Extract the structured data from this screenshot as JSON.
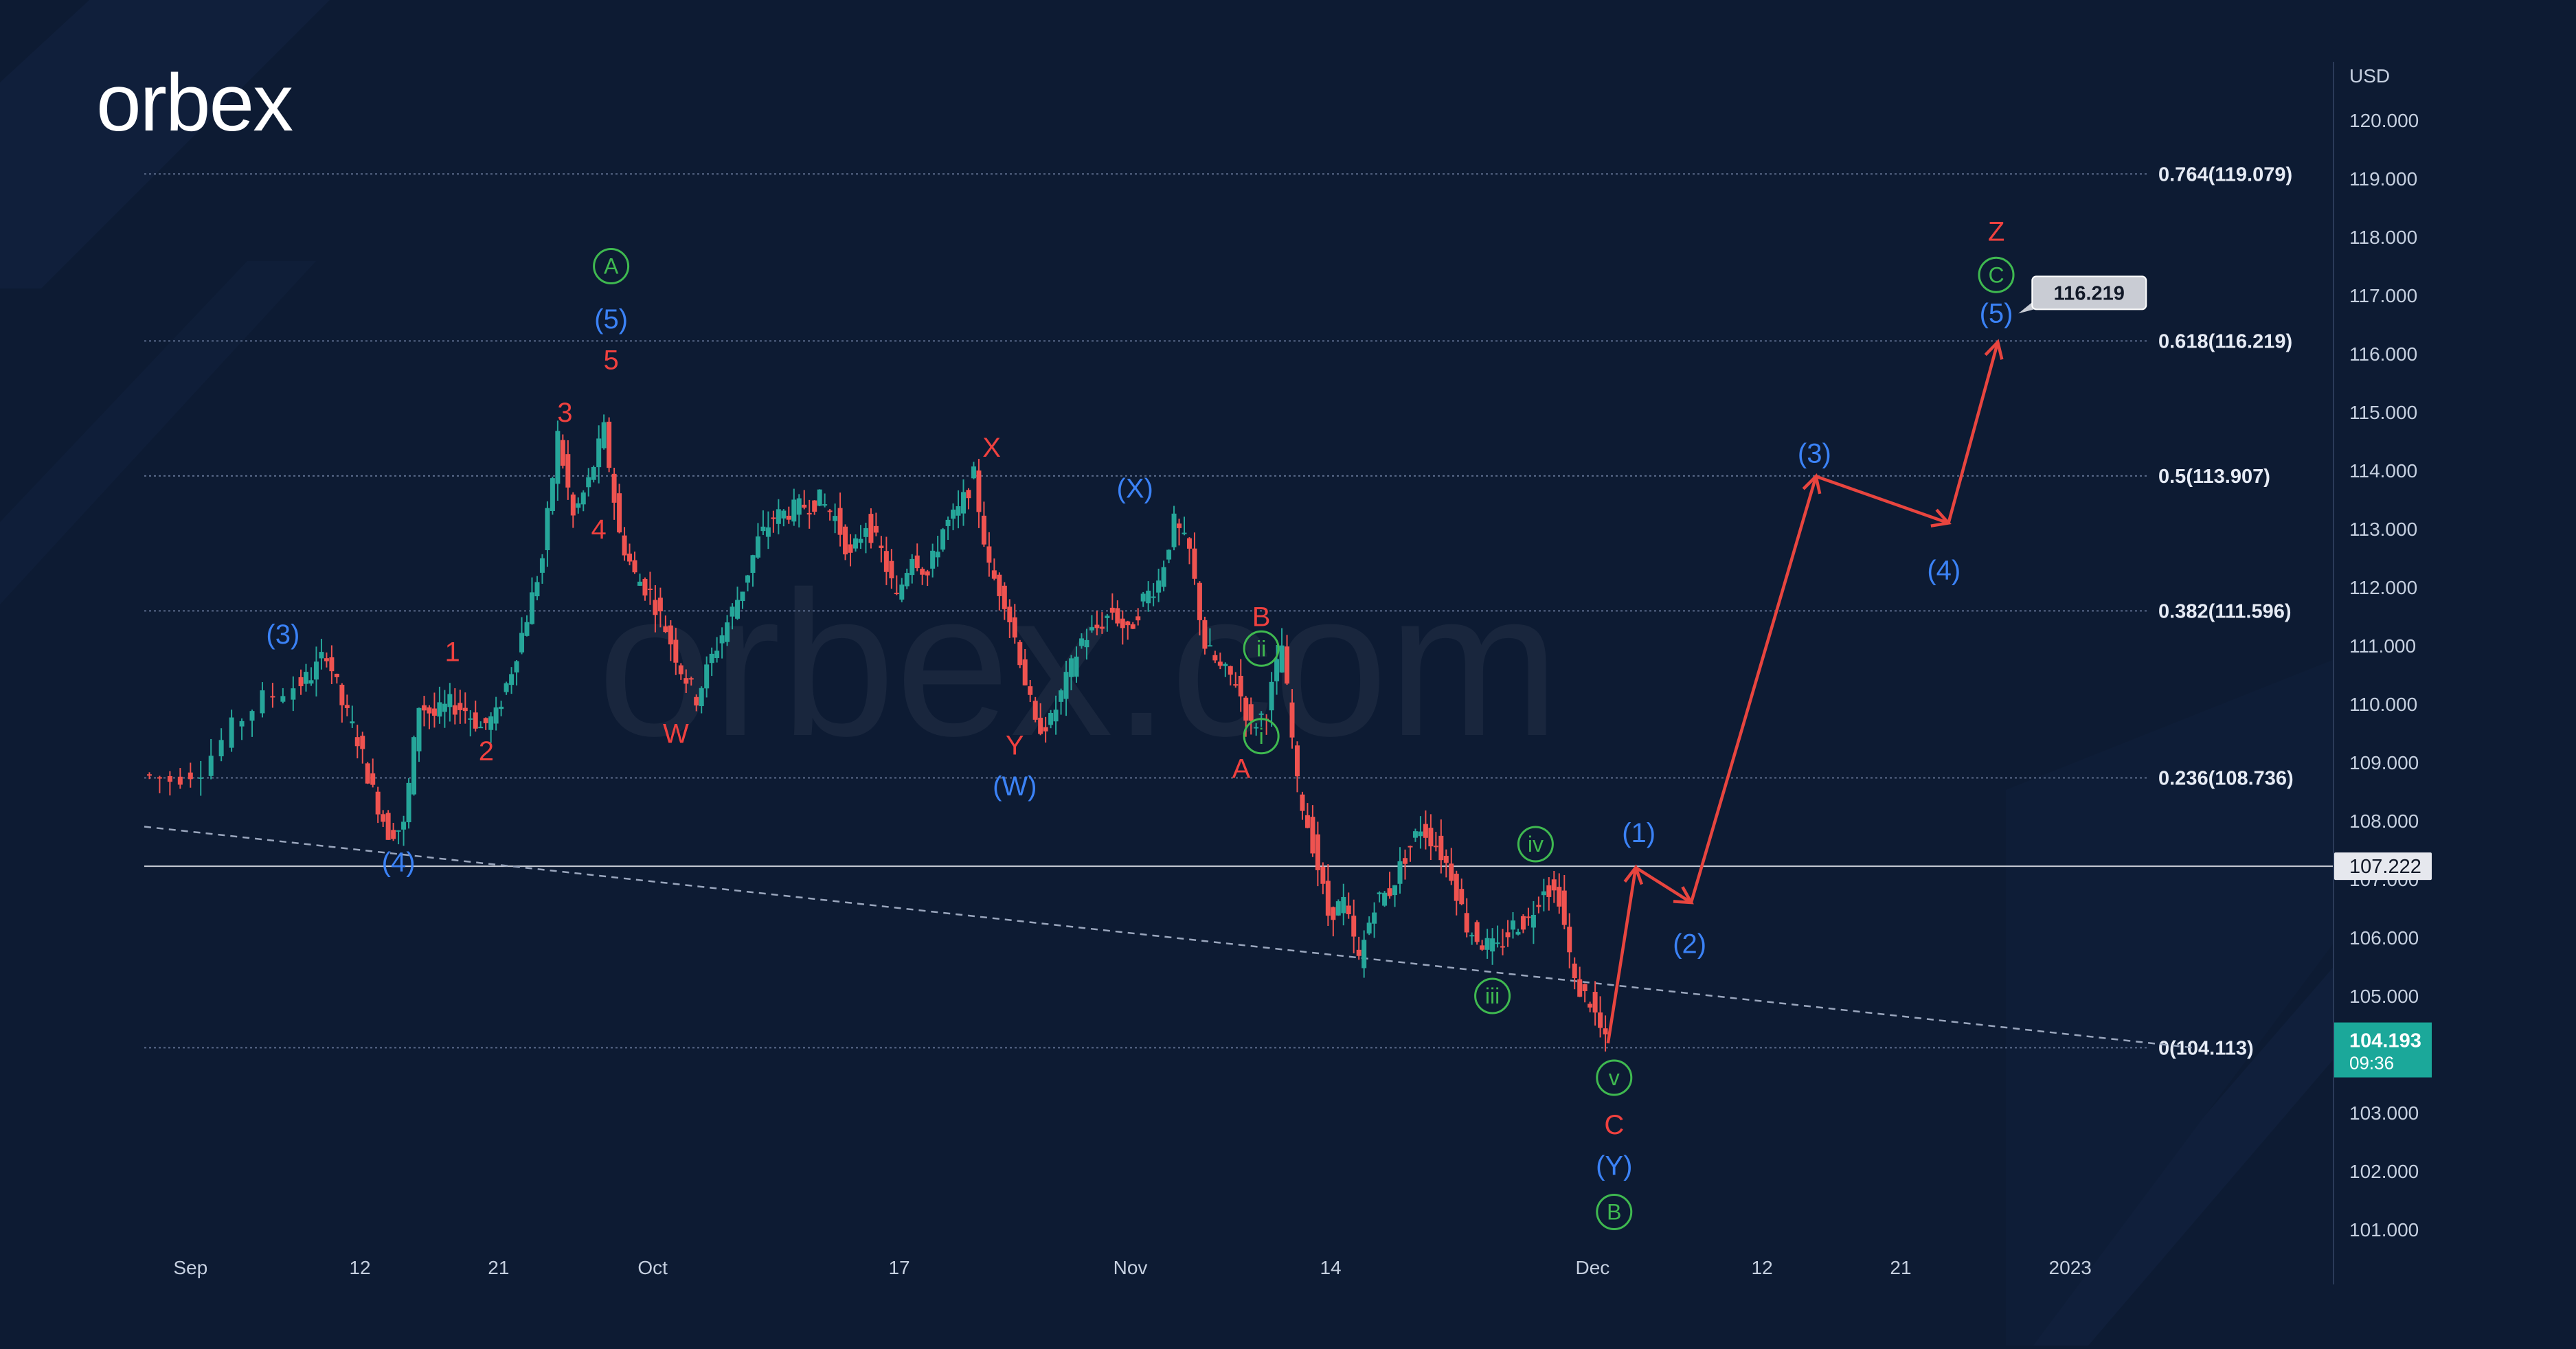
{
  "brand": {
    "logo_text": "orbex",
    "watermark_text": "orbex.com"
  },
  "colors": {
    "background": "#0d1b33",
    "up": "#26a69a",
    "down": "#ef5350",
    "red_label": "#f0413f",
    "blue_label": "#3b82f6",
    "green_label": "#3fb950",
    "fib_line": "#5a6a8a",
    "price_tag": "#1ba89a"
  },
  "chart_data": {
    "type": "line",
    "symbol_axis": "USD",
    "y_range": [
      100.0,
      121.0
    ],
    "y_ticks": [
      "101.000",
      "102.000",
      "103.000",
      "104.000",
      "105.000",
      "106.000",
      "107.000",
      "108.000",
      "109.000",
      "110.000",
      "111.000",
      "112.000",
      "113.000",
      "114.000",
      "115.000",
      "116.000",
      "117.000",
      "118.000",
      "119.000",
      "120.000"
    ],
    "y_tick_values": [
      101,
      102,
      103,
      104,
      105,
      106,
      107,
      108,
      109,
      110,
      111,
      112,
      113,
      114,
      115,
      116,
      117,
      118,
      119,
      120
    ],
    "x_ticks": [
      {
        "label": "Sep",
        "day": 0
      },
      {
        "label": "12",
        "day": 11
      },
      {
        "label": "21",
        "day": 20
      },
      {
        "label": "Oct",
        "day": 30
      },
      {
        "label": "17",
        "day": 46
      },
      {
        "label": "Nov",
        "day": 61
      },
      {
        "label": "14",
        "day": 74
      },
      {
        "label": "Dec",
        "day": 91
      },
      {
        "label": "12",
        "day": 102
      },
      {
        "label": "21",
        "day": 111
      },
      {
        "label": "2023",
        "day": 122
      }
    ],
    "x_range": [
      -3,
      139
    ],
    "price_path": [
      [
        -3,
        108.8
      ],
      [
        -1,
        108.7
      ],
      [
        1,
        108.9
      ],
      [
        3,
        109.6
      ],
      [
        5,
        110.1
      ],
      [
        7,
        110.3
      ],
      [
        8,
        110.5
      ],
      [
        9,
        110.9
      ],
      [
        10,
        110.0
      ],
      [
        11,
        109.4
      ],
      [
        12,
        108.5
      ],
      [
        13,
        107.8
      ],
      [
        14,
        107.9
      ],
      [
        15,
        110.0
      ],
      [
        16,
        109.8
      ],
      [
        17,
        110.0
      ],
      [
        18,
        109.9
      ],
      [
        19,
        109.6
      ],
      [
        20,
        109.8
      ],
      [
        21,
        110.6
      ],
      [
        22,
        111.5
      ],
      [
        23,
        112.5
      ],
      [
        24,
        114.6
      ],
      [
        25,
        113.2
      ],
      [
        26,
        113.8
      ],
      [
        27,
        114.7
      ],
      [
        28,
        112.9
      ],
      [
        29,
        112.2
      ],
      [
        30,
        111.9
      ],
      [
        31,
        111.3
      ],
      [
        32,
        110.6
      ],
      [
        33,
        110.1
      ],
      [
        34,
        110.8
      ],
      [
        35,
        111.4
      ],
      [
        36,
        112.0
      ],
      [
        37,
        112.8
      ],
      [
        38,
        113.2
      ],
      [
        39,
        113.3
      ],
      [
        40,
        113.4
      ],
      [
        41,
        113.5
      ],
      [
        42,
        113.2
      ],
      [
        43,
        112.5
      ],
      [
        44,
        113.1
      ],
      [
        45,
        112.6
      ],
      [
        46,
        111.8
      ],
      [
        47,
        112.6
      ],
      [
        48,
        112.2
      ],
      [
        49,
        113.0
      ],
      [
        50,
        113.3
      ],
      [
        51,
        113.9
      ],
      [
        52,
        112.3
      ],
      [
        53,
        111.8
      ],
      [
        54,
        110.8
      ],
      [
        55,
        109.6
      ],
      [
        56,
        109.7
      ],
      [
        57,
        110.4
      ],
      [
        58,
        111.1
      ],
      [
        59,
        111.3
      ],
      [
        60,
        111.6
      ],
      [
        61,
        111.2
      ],
      [
        62,
        111.8
      ],
      [
        63,
        112.1
      ],
      [
        64,
        113.1
      ],
      [
        65,
        112.6
      ],
      [
        66,
        111.0
      ],
      [
        67,
        110.6
      ],
      [
        68,
        110.4
      ],
      [
        69,
        109.6
      ],
      [
        70,
        109.9
      ],
      [
        71,
        111.0
      ],
      [
        72,
        108.6
      ],
      [
        73,
        107.6
      ],
      [
        74,
        106.4
      ],
      [
        75,
        106.6
      ],
      [
        76,
        105.6
      ],
      [
        77,
        106.6
      ],
      [
        78,
        106.8
      ],
      [
        79,
        107.4
      ],
      [
        80,
        107.9
      ],
      [
        81,
        107.6
      ],
      [
        82,
        107.1
      ],
      [
        83,
        106.2
      ],
      [
        84,
        105.9
      ],
      [
        85,
        105.8
      ],
      [
        86,
        106.2
      ],
      [
        87,
        106.3
      ],
      [
        88,
        106.9
      ],
      [
        89,
        106.7
      ],
      [
        90,
        105.2
      ],
      [
        91,
        104.9
      ],
      [
        92,
        104.19
      ]
    ],
    "forecast_path": [
      [
        92,
        104.19
      ],
      [
        93.8,
        107.2
      ],
      [
        97.4,
        106.6
      ],
      [
        105.5,
        113.9
      ],
      [
        114.1,
        113.1
      ],
      [
        117.3,
        116.2
      ]
    ],
    "trendline": [
      [
        -3,
        107.9
      ],
      [
        130,
        104.113
      ]
    ],
    "fib_levels": [
      {
        "label": "0.764(119.079)",
        "value": 119.079
      },
      {
        "label": "0.618(116.219)",
        "value": 116.219
      },
      {
        "label": "0.5(113.907)",
        "value": 113.907
      },
      {
        "label": "0.382(111.596)",
        "value": 111.596
      },
      {
        "label": "0.236(108.736)",
        "value": 108.736
      },
      {
        "label": "0(104.113)",
        "value": 104.113
      }
    ],
    "horizontal_line": {
      "value": 107.222,
      "tag": "107.222"
    },
    "forecast_target_tag": "116.219",
    "current_price": {
      "price": "104.193",
      "countdown": "09:36",
      "value": 104.193
    },
    "wave_labels": [
      {
        "text": "(3)",
        "color": "blue",
        "day": 6,
        "price": 111.2
      },
      {
        "text": "(4)",
        "color": "blue",
        "day": 13.5,
        "price": 107.3
      },
      {
        "text": "1",
        "color": "red",
        "day": 17,
        "price": 110.9
      },
      {
        "text": "2",
        "color": "red",
        "day": 19.2,
        "price": 109.2
      },
      {
        "text": "3",
        "color": "red",
        "day": 24.3,
        "price": 115.0
      },
      {
        "text": "4",
        "color": "red",
        "day": 26.5,
        "price": 113.0
      },
      {
        "text": "5",
        "color": "red",
        "day": 27.3,
        "price": 115.9
      },
      {
        "text": "(5)",
        "color": "blue",
        "day": 27.3,
        "price": 116.6
      },
      {
        "text": "A",
        "color": "green",
        "circled": true,
        "day": 27.3,
        "price": 117.5
      },
      {
        "text": "W",
        "color": "red",
        "day": 31.5,
        "price": 109.5
      },
      {
        "text": "X",
        "color": "red",
        "day": 52,
        "price": 114.4
      },
      {
        "text": "Y",
        "color": "red",
        "day": 53.5,
        "price": 109.3
      },
      {
        "text": "(W)",
        "color": "blue",
        "day": 53.5,
        "price": 108.6
      },
      {
        "text": "(X)",
        "color": "blue",
        "day": 61.3,
        "price": 113.7
      },
      {
        "text": "B",
        "color": "red",
        "day": 69.5,
        "price": 111.5
      },
      {
        "text": "ii",
        "color": "green",
        "circled": true,
        "day": 69.5,
        "price": 110.95
      },
      {
        "text": "i",
        "color": "green",
        "circled": true,
        "day": 69.5,
        "price": 109.45
      },
      {
        "text": "A",
        "color": "red",
        "day": 68.2,
        "price": 108.9
      },
      {
        "text": "iv",
        "color": "green",
        "circled": true,
        "day": 87.3,
        "price": 107.6
      },
      {
        "text": "iii",
        "color": "green",
        "circled": true,
        "day": 84.5,
        "price": 105.0
      },
      {
        "text": "v",
        "color": "green",
        "circled": true,
        "day": 92.4,
        "price": 103.6
      },
      {
        "text": "C",
        "color": "red",
        "day": 92.4,
        "price": 102.8
      },
      {
        "text": "(Y)",
        "color": "blue",
        "day": 92.4,
        "price": 102.1
      },
      {
        "text": "B",
        "color": "green",
        "circled": true,
        "day": 92.4,
        "price": 101.3
      },
      {
        "text": "(1)",
        "color": "blue",
        "day": 94,
        "price": 107.8
      },
      {
        "text": "(2)",
        "color": "blue",
        "day": 97.3,
        "price": 105.9
      },
      {
        "text": "(3)",
        "color": "blue",
        "day": 105.4,
        "price": 114.3
      },
      {
        "text": "(4)",
        "color": "blue",
        "day": 113.8,
        "price": 112.3
      },
      {
        "text": "(5)",
        "color": "blue",
        "day": 117.2,
        "price": 116.7
      },
      {
        "text": "C",
        "color": "green",
        "circled": true,
        "day": 117.2,
        "price": 117.35
      },
      {
        "text": "Z",
        "color": "red",
        "day": 117.2,
        "price": 118.1
      }
    ]
  }
}
